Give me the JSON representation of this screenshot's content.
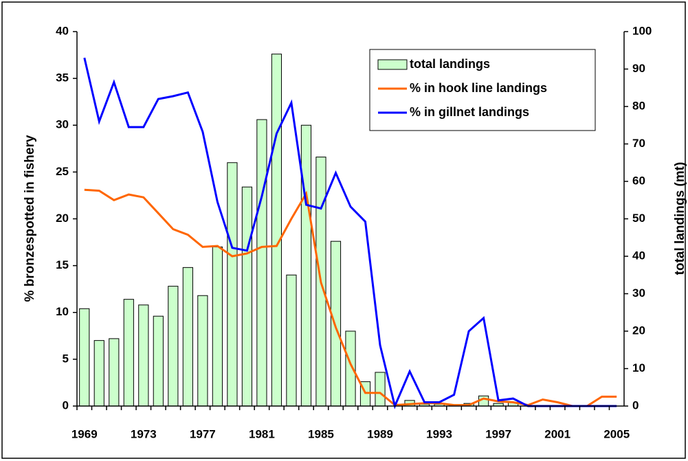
{
  "chart_data": {
    "type": "bar_line",
    "categories": [
      "1969",
      null,
      null,
      null,
      "1973",
      null,
      null,
      null,
      "1977",
      null,
      null,
      null,
      "1981",
      null,
      null,
      null,
      "1985",
      null,
      null,
      null,
      "1989",
      null,
      null,
      null,
      "1993",
      null,
      null,
      null,
      "1997",
      null,
      null,
      null,
      "2001",
      null,
      null,
      null,
      "2005"
    ],
    "ylabel": "% bronzespotted in fishery",
    "y2label": "total landings (mt)",
    "ylim": [
      0,
      40
    ],
    "yticks": [
      0,
      5,
      10,
      15,
      20,
      25,
      30,
      35,
      40
    ],
    "y2lim": [
      0,
      100
    ],
    "y2ticks": [
      0,
      10,
      20,
      30,
      40,
      50,
      60,
      70,
      80,
      90,
      100
    ],
    "legend": "upper right",
    "series": [
      {
        "name": "total landings",
        "type": "bar",
        "axis": "y2",
        "color": "#ccffcc",
        "values": [
          26,
          17.5,
          18,
          28.5,
          27,
          24,
          32,
          37,
          29.5,
          42.5,
          65,
          58.5,
          76.5,
          94,
          35,
          75,
          66.5,
          44,
          20,
          6.5,
          9,
          0,
          1.5,
          0.5,
          0.5,
          0.2,
          0.7,
          2.7,
          0.7,
          1,
          0,
          0,
          0,
          0,
          0,
          0,
          0
        ]
      },
      {
        "name": "% in hook line landings",
        "type": "line",
        "color": "#ff6600",
        "values": [
          23.1,
          23,
          22,
          22.6,
          22.3,
          20.6,
          18.9,
          18.3,
          17,
          17.1,
          16,
          16.3,
          17,
          17.1,
          20,
          22.7,
          13.2,
          8.4,
          4.5,
          1.4,
          1.4,
          0.1,
          0.2,
          0.3,
          0.3,
          0.1,
          0.1,
          0.8,
          0.5,
          0.4,
          0.1,
          0.7,
          0.4,
          0,
          0,
          1,
          1
        ]
      },
      {
        "name": "% in gillnet landings",
        "type": "line",
        "color": "#0000ff",
        "values": [
          37.2,
          30.4,
          34.6,
          29.8,
          29.8,
          32.8,
          33.1,
          33.5,
          29.3,
          21.8,
          16.9,
          16.6,
          22.4,
          29.1,
          32.4,
          21.5,
          21.1,
          24.9,
          21.3,
          19.7,
          6.5,
          0,
          3.7,
          0.4,
          0.4,
          1.2,
          8,
          9.4,
          0.6,
          0.8,
          0,
          0,
          0,
          0,
          0,
          0,
          0
        ]
      }
    ]
  }
}
